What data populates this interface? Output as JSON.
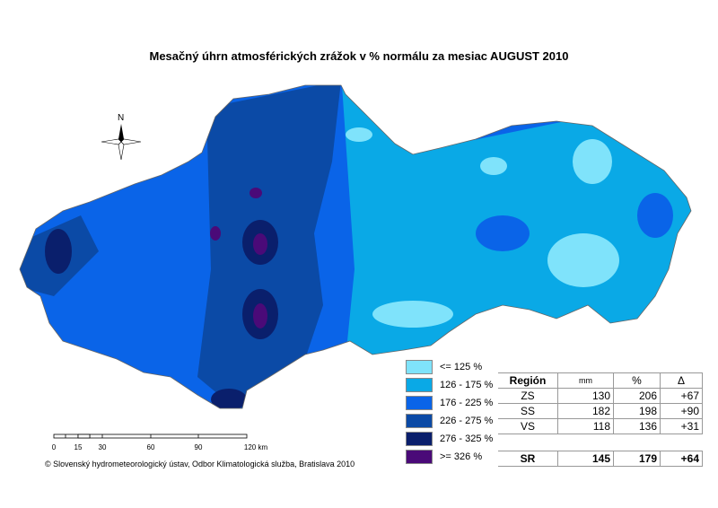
{
  "title": "Mesačný úhrn atmosférických zrážok v % normálu za mesiac AUGUST 2010",
  "compass": {
    "label": "N"
  },
  "legend": [
    {
      "label": "<= 125 %",
      "color": "#7fe3fb"
    },
    {
      "label": "126 - 175 %",
      "color": "#0aa9e6"
    },
    {
      "label": "176 - 225 %",
      "color": "#0a64e8"
    },
    {
      "label": "226 - 275 %",
      "color": "#0b4aa6"
    },
    {
      "label": "276 - 325 %",
      "color": "#0a1f6c"
    },
    {
      "label": ">= 326 %",
      "color": "#4a0a78"
    }
  ],
  "table": {
    "headers": [
      "Región",
      "mm",
      "%",
      "Δ"
    ],
    "rows": [
      [
        "ZS",
        "130",
        "206",
        "+67"
      ],
      [
        "SS",
        "182",
        "198",
        "+90"
      ],
      [
        "VS",
        "118",
        "136",
        "+31"
      ]
    ],
    "total": [
      "SR",
      "145",
      "179",
      "+64"
    ]
  },
  "scale": {
    "ticks": [
      "0",
      "15",
      "30",
      "60",
      "90",
      "120 km"
    ]
  },
  "copyright": "© Slovenský hydrometeorologický ústav, Odbor Klimatologická služba, Bratislava 2010"
}
